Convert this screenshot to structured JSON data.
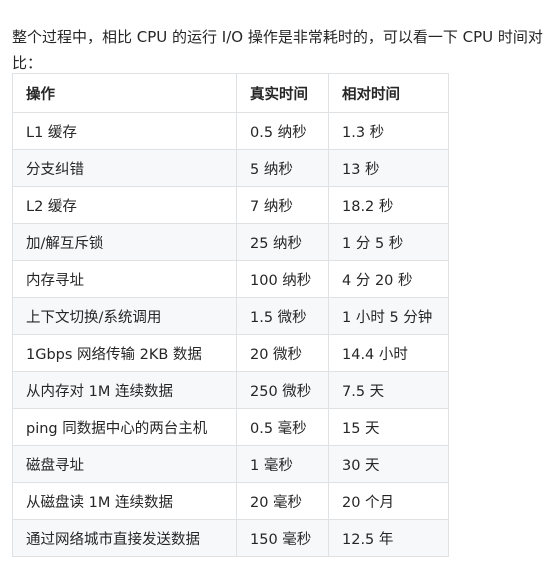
{
  "intro": "整个过程中，相比 CPU 的运行 I/O 操作是非常耗时的，可以看一下 CPU 时间对比：",
  "table": {
    "headers": [
      "操作",
      "真实时间",
      "相对时间"
    ],
    "rows": [
      [
        "L1 缓存",
        "0.5 纳秒",
        "1.3 秒"
      ],
      [
        "分支纠错",
        "5 纳秒",
        "13 秒"
      ],
      [
        "L2 缓存",
        "7 纳秒",
        "18.2 秒"
      ],
      [
        "加/解互斥锁",
        "25 纳秒",
        "1 分 5 秒"
      ],
      [
        "内存寻址",
        "100 纳秒",
        "4 分 20 秒"
      ],
      [
        "上下文切换/系统调用",
        "1.5 微秒",
        "1 小时 5 分钟"
      ],
      [
        "1Gbps 网络传输 2KB 数据",
        "20 微秒",
        "14.4 小时"
      ],
      [
        "从内存对 1M 连续数据",
        "250 微秒",
        "7.5 天"
      ],
      [
        "ping 同数据中心的两台主机",
        "0.5 毫秒",
        "15 天"
      ],
      [
        "磁盘寻址",
        "1 毫秒",
        "30 天"
      ],
      [
        "从磁盘读 1M 连续数据",
        "20 毫秒",
        "20 个月"
      ],
      [
        "通过网络城市直接发送数据",
        "150 毫秒",
        "12.5 年"
      ]
    ]
  }
}
